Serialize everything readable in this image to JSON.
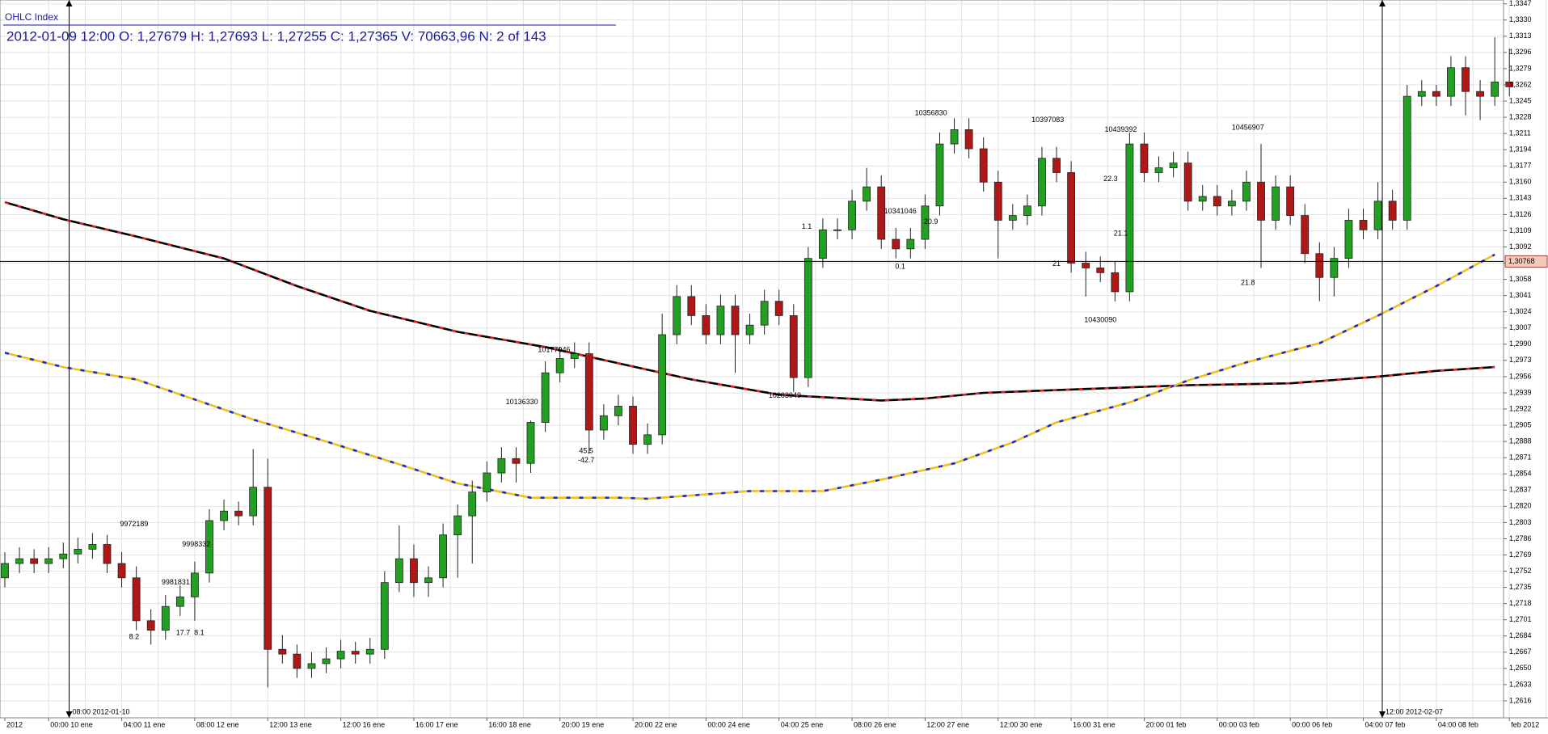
{
  "chart_data": {
    "type": "candlestick",
    "source": "OHLC Index",
    "title": "2012-01-09 12:00 O: 1,27679 H: 1,27693 L: 1,27255 C: 1,27365 V: 70663,96 N: 2 of 143",
    "up_color": "#22a022",
    "down_color": "#b01818",
    "grid": true,
    "categories": [
      "2012",
      null,
      null,
      "00:00 10 ene",
      null,
      null,
      null,
      null,
      "04:00 11 ene",
      null,
      null,
      null,
      null,
      "08:00 12 ene",
      null,
      null,
      null,
      null,
      "12:00 13 ene",
      null,
      null,
      null,
      null,
      "12:00 16 ene",
      null,
      null,
      null,
      null,
      "16:00 17 ene",
      null,
      null,
      null,
      null,
      "16:00 18 ene",
      null,
      null,
      null,
      null,
      "20:00 19 ene",
      null,
      null,
      null,
      null,
      "20:00 22 ene",
      null,
      null,
      null,
      null,
      "00:00 24 ene",
      null,
      null,
      null,
      null,
      "04:00 25 ene",
      null,
      null,
      null,
      null,
      "08:00 26 ene",
      null,
      null,
      null,
      null,
      "12:00 27 ene",
      null,
      null,
      null,
      null,
      "12:00 30 ene",
      null,
      null,
      null,
      null,
      "16:00 31 ene",
      null,
      null,
      null,
      null,
      "20:00 01 feb",
      null,
      null,
      null,
      null,
      "00:00 03 feb",
      null,
      null,
      null,
      null,
      "00:00 06 feb",
      null,
      null,
      null,
      null,
      "04:00 07 feb",
      null,
      null,
      null,
      null,
      "04:00 08 feb",
      null,
      null,
      null,
      null,
      "feb 2012"
    ],
    "open": [
      1.2745,
      1.276,
      1.2765,
      1.276,
      1.2765,
      1.277,
      1.2775,
      1.278,
      1.276,
      1.2745,
      1.27,
      1.269,
      1.2715,
      1.2725,
      1.275,
      1.2805,
      1.2815,
      1.281,
      1.284,
      1.267,
      1.2665,
      1.265,
      1.2655,
      1.266,
      1.2668,
      1.2665,
      1.267,
      1.274,
      1.2765,
      1.274,
      1.2745,
      1.279,
      1.281,
      1.2835,
      1.2855,
      1.287,
      1.2865,
      1.2908,
      1.296,
      1.2975,
      1.298,
      1.29,
      1.2915,
      1.2925,
      1.2885,
      1.2895,
      1.3,
      1.304,
      1.302,
      1.3,
      1.303,
      1.3,
      1.301,
      1.3035,
      1.302,
      1.2955,
      1.308,
      1.311,
      1.311,
      1.314,
      1.3155,
      1.31,
      1.309,
      1.31,
      1.3135,
      1.32,
      1.3215,
      1.3195,
      1.316,
      1.312,
      1.3125,
      1.3135,
      1.3185,
      1.317,
      1.3075,
      1.307,
      1.3065,
      1.3045,
      1.32,
      1.317,
      1.3175,
      1.318,
      1.314,
      1.3145,
      1.3135,
      1.314,
      1.316,
      1.312,
      1.3155,
      1.3125,
      1.3085,
      1.306,
      1.308,
      1.312,
      1.311,
      1.314,
      1.312,
      1.325,
      1.3255,
      1.325,
      1.328,
      1.3255,
      1.325,
      1.3265
    ],
    "high": [
      1.2772,
      1.2777,
      1.2775,
      1.2777,
      1.2782,
      1.2787,
      1.2792,
      1.279,
      1.2772,
      1.2757,
      1.2712,
      1.2727,
      1.2737,
      1.2762,
      1.2817,
      1.2827,
      1.2825,
      1.288,
      1.287,
      1.2685,
      1.2675,
      1.2667,
      1.2672,
      1.268,
      1.2678,
      1.2682,
      1.2752,
      1.28,
      1.278,
      1.2757,
      1.2802,
      1.2822,
      1.2847,
      1.2867,
      1.2882,
      1.2882,
      1.291,
      1.2972,
      1.2987,
      1.2992,
      1.2992,
      1.2927,
      1.2937,
      1.2935,
      1.2907,
      1.3022,
      1.3052,
      1.3052,
      1.3032,
      1.3042,
      1.3042,
      1.3022,
      1.3047,
      1.3047,
      1.3032,
      1.3092,
      1.3122,
      1.3122,
      1.3152,
      1.3175,
      1.3167,
      1.3112,
      1.3112,
      1.3147,
      1.3212,
      1.3227,
      1.3227,
      1.3207,
      1.3172,
      1.3137,
      1.3147,
      1.3197,
      1.3197,
      1.3182,
      1.3087,
      1.3082,
      1.3077,
      1.3212,
      1.3212,
      1.3187,
      1.3192,
      1.3192,
      1.3157,
      1.3157,
      1.3152,
      1.3172,
      1.32,
      1.3167,
      1.3167,
      1.3137,
      1.3097,
      1.3092,
      1.3132,
      1.3132,
      1.316,
      1.3152,
      1.3262,
      1.3267,
      1.3262,
      1.3292,
      1.3292,
      1.3267,
      1.3312,
      1.33
    ],
    "low": [
      1.2735,
      1.275,
      1.275,
      1.275,
      1.2755,
      1.276,
      1.2765,
      1.275,
      1.2735,
      1.269,
      1.2675,
      1.268,
      1.2705,
      1.27,
      1.274,
      1.2795,
      1.28,
      1.28,
      1.263,
      1.2655,
      1.264,
      1.264,
      1.2645,
      1.265,
      1.2655,
      1.2655,
      1.266,
      1.273,
      1.2725,
      1.2725,
      1.2735,
      1.2745,
      1.276,
      1.2825,
      1.2845,
      1.2845,
      1.2855,
      1.2898,
      1.295,
      1.2965,
      1.2875,
      1.289,
      1.2905,
      1.2875,
      1.2875,
      1.2885,
      1.299,
      1.301,
      1.299,
      1.299,
      1.296,
      1.299,
      1.3,
      1.301,
      1.294,
      1.2945,
      1.307,
      1.31,
      1.31,
      1.313,
      1.309,
      1.308,
      1.308,
      1.309,
      1.3125,
      1.319,
      1.3185,
      1.315,
      1.308,
      1.311,
      1.3115,
      1.3125,
      1.316,
      1.3065,
      1.304,
      1.3055,
      1.3035,
      1.3035,
      1.316,
      1.316,
      1.3165,
      1.313,
      1.313,
      1.3125,
      1.3125,
      1.313,
      1.307,
      1.311,
      1.3115,
      1.3075,
      1.3035,
      1.304,
      1.307,
      1.31,
      1.31,
      1.311,
      1.311,
      1.324,
      1.324,
      1.324,
      1.323,
      1.3225,
      1.324,
      1.325
    ],
    "close": [
      1.276,
      1.2765,
      1.276,
      1.2765,
      1.277,
      1.2775,
      1.278,
      1.276,
      1.2745,
      1.27,
      1.269,
      1.2715,
      1.2725,
      1.275,
      1.2805,
      1.2815,
      1.281,
      1.284,
      1.267,
      1.2665,
      1.265,
      1.2655,
      1.266,
      1.2668,
      1.2665,
      1.267,
      1.274,
      1.2765,
      1.274,
      1.2745,
      1.279,
      1.281,
      1.2835,
      1.2855,
      1.287,
      1.2865,
      1.2908,
      1.296,
      1.2975,
      1.298,
      1.29,
      1.2915,
      1.2925,
      1.2885,
      1.2895,
      1.3,
      1.304,
      1.302,
      1.3,
      1.303,
      1.3,
      1.301,
      1.3035,
      1.302,
      1.2955,
      1.308,
      1.311,
      1.311,
      1.314,
      1.3155,
      1.31,
      1.309,
      1.31,
      1.3135,
      1.32,
      1.3215,
      1.3195,
      1.316,
      1.312,
      1.3125,
      1.3135,
      1.3185,
      1.317,
      1.3075,
      1.307,
      1.3065,
      1.3045,
      1.32,
      1.317,
      1.3175,
      1.318,
      1.314,
      1.3145,
      1.3135,
      1.314,
      1.316,
      1.312,
      1.3155,
      1.3125,
      1.3085,
      1.306,
      1.308,
      1.312,
      1.311,
      1.314,
      1.312,
      1.325,
      1.3255,
      1.325,
      1.328,
      1.3255,
      1.325,
      1.3265,
      1.326
    ],
    "lines": [
      {
        "color": "#000000",
        "color2": "#e02020",
        "x": [
          0,
          4,
          9,
          15,
          20,
          25,
          31,
          37,
          42,
          47,
          53,
          60,
          63,
          67,
          74,
          81,
          88,
          94,
          98,
          102
        ],
        "values": [
          1.3139,
          1.3121,
          1.3103,
          1.308,
          1.3051,
          1.3025,
          1.3003,
          1.2987,
          1.297,
          1.2953,
          1.2937,
          1.2931,
          1.2933,
          1.2939,
          1.2943,
          1.2947,
          1.2949,
          1.2956,
          1.2962,
          1.2966
        ]
      },
      {
        "color": "#f0c020",
        "color2": "#1a2ad0",
        "x": [
          0,
          4,
          9,
          13,
          17,
          22,
          27,
          31,
          36,
          42,
          44,
          51,
          56,
          60,
          65,
          69,
          72,
          77,
          81,
          85,
          90,
          94,
          98,
          102
        ],
        "values": [
          1.2981,
          1.2966,
          1.2953,
          1.2932,
          1.2911,
          1.2888,
          1.2864,
          1.2844,
          1.2829,
          1.2829,
          1.2828,
          1.2836,
          1.2836,
          1.2848,
          1.2865,
          1.2887,
          1.2908,
          1.2929,
          1.2952,
          1.2971,
          1.2991,
          1.302,
          1.3051,
          1.3084
        ]
      }
    ],
    "hline": {
      "value": 1.30768,
      "label": "1,30768"
    },
    "cursors": [
      {
        "x": 4.4,
        "label": "08:00 2012-01-10"
      },
      {
        "x": 94.3,
        "label": "12:00 2012-02-07"
      }
    ],
    "annotations": [
      {
        "text": "9972189",
        "x": 8.85,
        "y": 1.2801
      },
      {
        "text": "9981831",
        "x": 11.7,
        "y": 1.274
      },
      {
        "text": "9998332",
        "x": 13.1,
        "y": 1.278
      },
      {
        "text": "8.2",
        "x": 8.85,
        "y": 1.2683
      },
      {
        "text": "17.7",
        "x": 12.2,
        "y": 1.2687
      },
      {
        "text": "8.1",
        "x": 13.3,
        "y": 1.2687
      },
      {
        "text": "10136330",
        "x": 35.4,
        "y": 1.2929
      },
      {
        "text": "10177046",
        "x": 37.6,
        "y": 1.2984
      },
      {
        "text": "45.5",
        "x": 39.8,
        "y": 1.2878
      },
      {
        "text": "-42.7",
        "x": 39.8,
        "y": 1.2868
      },
      {
        "text": "10283049",
        "x": 53.4,
        "y": 1.2936
      },
      {
        "text": "1.1",
        "x": 54.9,
        "y": 1.3113
      },
      {
        "text": "10341046",
        "x": 61.3,
        "y": 1.3129
      },
      {
        "text": "20.9",
        "x": 63.4,
        "y": 1.3118
      },
      {
        "text": "0.1",
        "x": 61.3,
        "y": 1.3071
      },
      {
        "text": "10356830",
        "x": 63.4,
        "y": 1.3232
      },
      {
        "text": "10397083",
        "x": 71.4,
        "y": 1.3225
      },
      {
        "text": "21",
        "x": 72,
        "y": 1.3074
      },
      {
        "text": "10439392",
        "x": 76.4,
        "y": 1.3215
      },
      {
        "text": "22.3",
        "x": 75.7,
        "y": 1.3163
      },
      {
        "text": "21.1",
        "x": 76.4,
        "y": 1.3106
      },
      {
        "text": "10430090",
        "x": 75,
        "y": 1.3015
      },
      {
        "text": "10456907",
        "x": 85.1,
        "y": 1.3217
      },
      {
        "text": "21.8",
        "x": 85.1,
        "y": 1.3054
      }
    ],
    "ylim": [
      1.2599,
      1.3351
    ],
    "yticks": [
      {
        "value": 1.2616,
        "label": "1,2616"
      },
      {
        "value": 1.2633,
        "label": "1,2633"
      },
      {
        "value": 1.265,
        "label": "1,2650"
      },
      {
        "value": 1.2667,
        "label": "1,2667"
      },
      {
        "value": 1.2684,
        "label": "1,2684"
      },
      {
        "value": 1.2701,
        "label": "1,2701"
      },
      {
        "value": 1.2718,
        "label": "1,2718"
      },
      {
        "value": 1.2735,
        "label": "1,2735"
      },
      {
        "value": 1.2752,
        "label": "1,2752"
      },
      {
        "value": 1.2769,
        "label": "1,2769"
      },
      {
        "value": 1.2786,
        "label": "1,2786"
      },
      {
        "value": 1.2803,
        "label": "1,2803"
      },
      {
        "value": 1.282,
        "label": "1,2820"
      },
      {
        "value": 1.2837,
        "label": "1,2837"
      },
      {
        "value": 1.2854,
        "label": "1,2854"
      },
      {
        "value": 1.2871,
        "label": "1,2871"
      },
      {
        "value": 1.2888,
        "label": "1,2888"
      },
      {
        "value": 1.2905,
        "label": "1,2905"
      },
      {
        "value": 1.2922,
        "label": "1,2922"
      },
      {
        "value": 1.2939,
        "label": "1,2939"
      },
      {
        "value": 1.2956,
        "label": "1,2956"
      },
      {
        "value": 1.2973,
        "label": "1,2973"
      },
      {
        "value": 1.299,
        "label": "1,2990"
      },
      {
        "value": 1.3007,
        "label": "1,3007"
      },
      {
        "value": 1.3024,
        "label": "1,3024"
      },
      {
        "value": 1.3041,
        "label": "1,3041"
      },
      {
        "value": 1.3058,
        "label": "1,3058"
      },
      {
        "value": 1.3075,
        "label": "1,3075"
      },
      {
        "value": 1.3092,
        "label": "1,3092"
      },
      {
        "value": 1.3109,
        "label": "1,3109"
      },
      {
        "value": 1.3126,
        "label": "1,3126"
      },
      {
        "value": 1.3143,
        "label": "1,3143"
      },
      {
        "value": 1.316,
        "label": "1,3160"
      },
      {
        "value": 1.3177,
        "label": "1,3177"
      },
      {
        "value": 1.3194,
        "label": "1,3194"
      },
      {
        "value": 1.3211,
        "label": "1,3211"
      },
      {
        "value": 1.3228,
        "label": "1,3228"
      },
      {
        "value": 1.3245,
        "label": "1,3245"
      },
      {
        "value": 1.3262,
        "label": "1,3262"
      },
      {
        "value": 1.3279,
        "label": "1,3279"
      },
      {
        "value": 1.3296,
        "label": "1,3296"
      },
      {
        "value": 1.3313,
        "label": "1,3313"
      },
      {
        "value": 1.333,
        "label": "1,3330"
      },
      {
        "value": 1.3347,
        "label": "1,3347"
      }
    ]
  }
}
